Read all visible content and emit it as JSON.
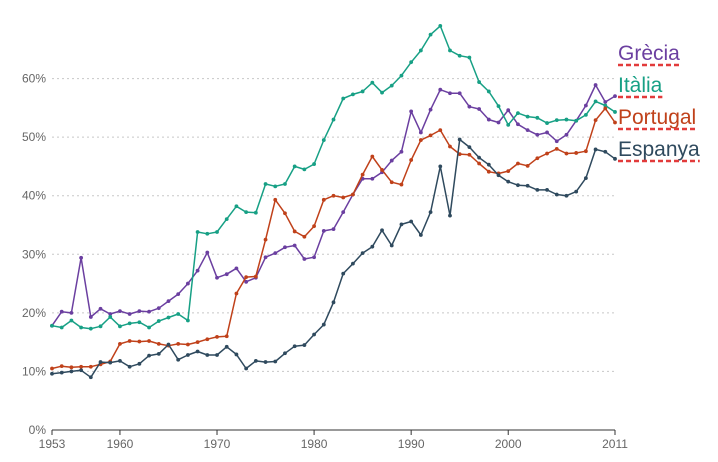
{
  "chart_data": {
    "type": "line",
    "title": "",
    "xlabel": "",
    "ylabel": "",
    "xlim": [
      1953,
      2011
    ],
    "ylim": [
      0,
      70
    ],
    "x_ticks": [
      1953,
      1960,
      1970,
      1980,
      1990,
      2000,
      2011
    ],
    "x_tick_labels": [
      "1953",
      "1960",
      "1970",
      "1980",
      "1990",
      "2000",
      "2011"
    ],
    "y_ticks": [
      0,
      10,
      20,
      30,
      40,
      50,
      60
    ],
    "y_tick_labels": [
      "0%",
      "10%",
      "20%",
      "30%",
      "40%",
      "50%",
      "60%"
    ],
    "grid": "horizontal dotted",
    "legend": "labels at right end of lines",
    "x": [
      1953,
      1954,
      1955,
      1956,
      1957,
      1958,
      1959,
      1960,
      1961,
      1962,
      1963,
      1964,
      1965,
      1966,
      1967,
      1968,
      1969,
      1970,
      1971,
      1972,
      1973,
      1974,
      1975,
      1976,
      1977,
      1978,
      1979,
      1980,
      1981,
      1982,
      1983,
      1984,
      1985,
      1986,
      1987,
      1988,
      1989,
      1990,
      1991,
      1992,
      1993,
      1994,
      1995,
      1996,
      1997,
      1998,
      1999,
      2000,
      2001,
      2002,
      2003,
      2004,
      2005,
      2006,
      2007,
      2008,
      2009,
      2010,
      2011
    ],
    "series": [
      {
        "name": "Grècia",
        "color": "#6b3fa0",
        "values": [
          17.8,
          20.2,
          20.0,
          29.4,
          19.3,
          20.7,
          19.8,
          20.3,
          19.8,
          20.3,
          20.2,
          20.8,
          22.0,
          23.2,
          25.0,
          27.2,
          30.3,
          26.0,
          26.6,
          27.6,
          25.3,
          26.0,
          29.5,
          30.2,
          31.2,
          31.5,
          29.2,
          29.5,
          34.0,
          34.3,
          37.2,
          40.2,
          42.9,
          42.9,
          44.0,
          46.0,
          47.5,
          54.4,
          50.8,
          54.7,
          58.1,
          57.5,
          57.5,
          55.2,
          54.8,
          53.0,
          52.5,
          54.6,
          52.2,
          51.2,
          50.4,
          50.8,
          49.3,
          50.4,
          52.8,
          55.4,
          58.9,
          56.0,
          57.0
        ]
      },
      {
        "name": "Itàlia",
        "color": "#17a085",
        "values": [
          17.8,
          17.5,
          18.7,
          17.5,
          17.3,
          17.7,
          19.3,
          17.7,
          18.2,
          18.4,
          17.5,
          18.6,
          19.2,
          19.8,
          18.7,
          33.8,
          33.5,
          33.8,
          36.0,
          38.2,
          37.2,
          37.1,
          42.0,
          41.6,
          42.0,
          45.0,
          44.5,
          45.4,
          49.5,
          53.0,
          56.6,
          57.3,
          57.8,
          59.3,
          57.6,
          58.8,
          60.5,
          62.8,
          64.8,
          67.5,
          69.0,
          64.8,
          63.9,
          63.6,
          59.4,
          57.8,
          55.3,
          52.1,
          54.1,
          53.5,
          53.3,
          52.4,
          52.9,
          53.0,
          52.8,
          53.8,
          56.1,
          55.4,
          54.3
        ]
      },
      {
        "name": "Portugal",
        "color": "#c0411a",
        "values": [
          10.5,
          10.9,
          10.7,
          10.8,
          10.8,
          11.2,
          11.7,
          14.7,
          15.2,
          15.1,
          15.2,
          14.7,
          14.4,
          14.7,
          14.6,
          15.0,
          15.5,
          15.9,
          16.0,
          23.3,
          26.1,
          26.2,
          32.5,
          39.3,
          37.0,
          33.9,
          33.0,
          34.8,
          39.3,
          40.0,
          39.7,
          40.2,
          43.6,
          46.7,
          44.4,
          42.3,
          41.9,
          46.1,
          49.5,
          50.3,
          51.2,
          48.4,
          47.1,
          47.0,
          45.5,
          44.1,
          43.8,
          44.2,
          45.5,
          45.1,
          46.4,
          47.2,
          48.0,
          47.2,
          47.3,
          47.6,
          52.9,
          54.9,
          52.5
        ]
      },
      {
        "name": "Espanya",
        "color": "#2f4a5e",
        "values": [
          9.6,
          9.8,
          10.0,
          10.2,
          9.0,
          11.6,
          11.5,
          11.8,
          10.8,
          11.3,
          12.7,
          13.0,
          14.6,
          12.0,
          12.8,
          13.4,
          12.8,
          12.8,
          14.2,
          12.9,
          10.5,
          11.8,
          11.6,
          11.7,
          13.1,
          14.3,
          14.5,
          16.3,
          18.0,
          21.8,
          26.7,
          28.4,
          30.2,
          31.3,
          34.1,
          31.5,
          35.1,
          35.6,
          33.3,
          37.2,
          45.0,
          36.6,
          49.6,
          48.3,
          46.5,
          45.3,
          43.5,
          42.4,
          41.8,
          41.7,
          41.0,
          41.0,
          40.2,
          40.0,
          40.7,
          43.0,
          47.9,
          47.5,
          46.3
        ]
      }
    ]
  }
}
